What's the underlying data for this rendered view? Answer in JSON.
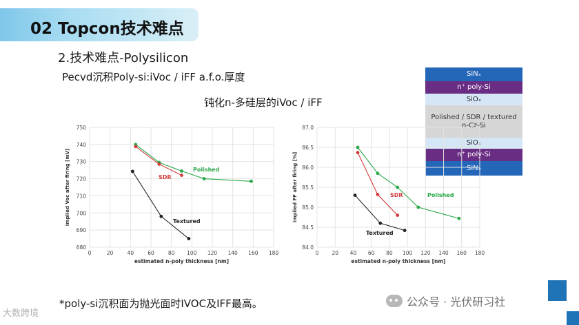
{
  "slide": {
    "title": "02  Topcon技术难点",
    "subtitle": "2.技术难点-Polysilicon",
    "line2": "Pecvd沉积Poly-si:iVoc /  iFF a.f.o.厚度",
    "line3": "钝化n-多硅层的iVoc /  iFF",
    "footnote": "*poly-si沉积面为抛光面时IVOC及IFF最高。",
    "watermark": "公众号 · 光伏研习社",
    "logo_text": "大数跨境"
  },
  "colors": {
    "accent_blue": "#1f73b7",
    "polished": "#2aa84a",
    "sdr": "#d13a3a",
    "textured": "#222222"
  },
  "layer_stack": [
    {
      "label": "SiNₓ",
      "bg": "#2466b8",
      "fg": "#ffffff"
    },
    {
      "label": "n⁺ poly-Si",
      "bg": "#6a2d84",
      "fg": "#ffffff"
    },
    {
      "label": "SiOₓ",
      "bg": "#d5e7f6",
      "fg": "#1a1a1a"
    },
    {
      "label": "Polished / SDR / textured\nn-Cz-Si",
      "bg": "#d6d6d6",
      "fg": "#333333"
    },
    {
      "label": "SiOₓ",
      "bg": "#d5e7f6",
      "fg": "#1a1a1a"
    },
    {
      "label": "n⁺ poly-Si",
      "bg": "#6a2d84",
      "fg": "#ffffff"
    },
    {
      "label": "SiNₓ",
      "bg": "#2466b8",
      "fg": "#ffffff"
    }
  ],
  "chart_data": [
    {
      "type": "line",
      "xlabel": "estimated n-poly thickness [nm]",
      "ylabel": "implied Voc after firing [mV]",
      "xlim": [
        0,
        180
      ],
      "ylim": [
        680,
        750
      ],
      "xticks": [
        0,
        20,
        40,
        60,
        80,
        100,
        120,
        140,
        160,
        180
      ],
      "yticks": [
        680,
        690,
        700,
        710,
        720,
        730,
        740,
        750
      ],
      "series": [
        {
          "name": "Polished",
          "color": "#2aa84a",
          "x": [
            45,
            68,
            90,
            112,
            158
          ],
          "y": [
            740,
            729.5,
            724.5,
            720,
            718.5
          ]
        },
        {
          "name": "SDR",
          "color": "#d13a3a",
          "x": [
            45,
            68,
            90
          ],
          "y": [
            738.8,
            728.5,
            722
          ]
        },
        {
          "name": "Textured",
          "color": "#222222",
          "x": [
            42,
            70,
            97
          ],
          "y": [
            724.3,
            698,
            685
          ]
        }
      ],
      "grid": true
    },
    {
      "type": "line",
      "xlabel": "estimated n-poly thickness [nm]",
      "ylabel": "implied FF after firing [%]",
      "xlim": [
        0,
        180
      ],
      "ylim": [
        84.0,
        87.0
      ],
      "xticks": [
        0,
        20,
        40,
        60,
        80,
        100,
        120,
        140,
        160,
        180
      ],
      "yticks": [
        84.0,
        84.5,
        85.0,
        85.5,
        86.0,
        86.5,
        87.0
      ],
      "series": [
        {
          "name": "Polished",
          "color": "#2aa84a",
          "x": [
            45,
            67,
            89,
            112,
            157
          ],
          "y": [
            86.5,
            85.85,
            85.5,
            85.0,
            84.72
          ]
        },
        {
          "name": "SDR",
          "color": "#d13a3a",
          "x": [
            45,
            67,
            89
          ],
          "y": [
            86.37,
            85.32,
            84.8
          ]
        },
        {
          "name": "Textured",
          "color": "#222222",
          "x": [
            42,
            70,
            97
          ],
          "y": [
            85.3,
            84.6,
            84.42
          ]
        }
      ],
      "grid": true
    }
  ]
}
